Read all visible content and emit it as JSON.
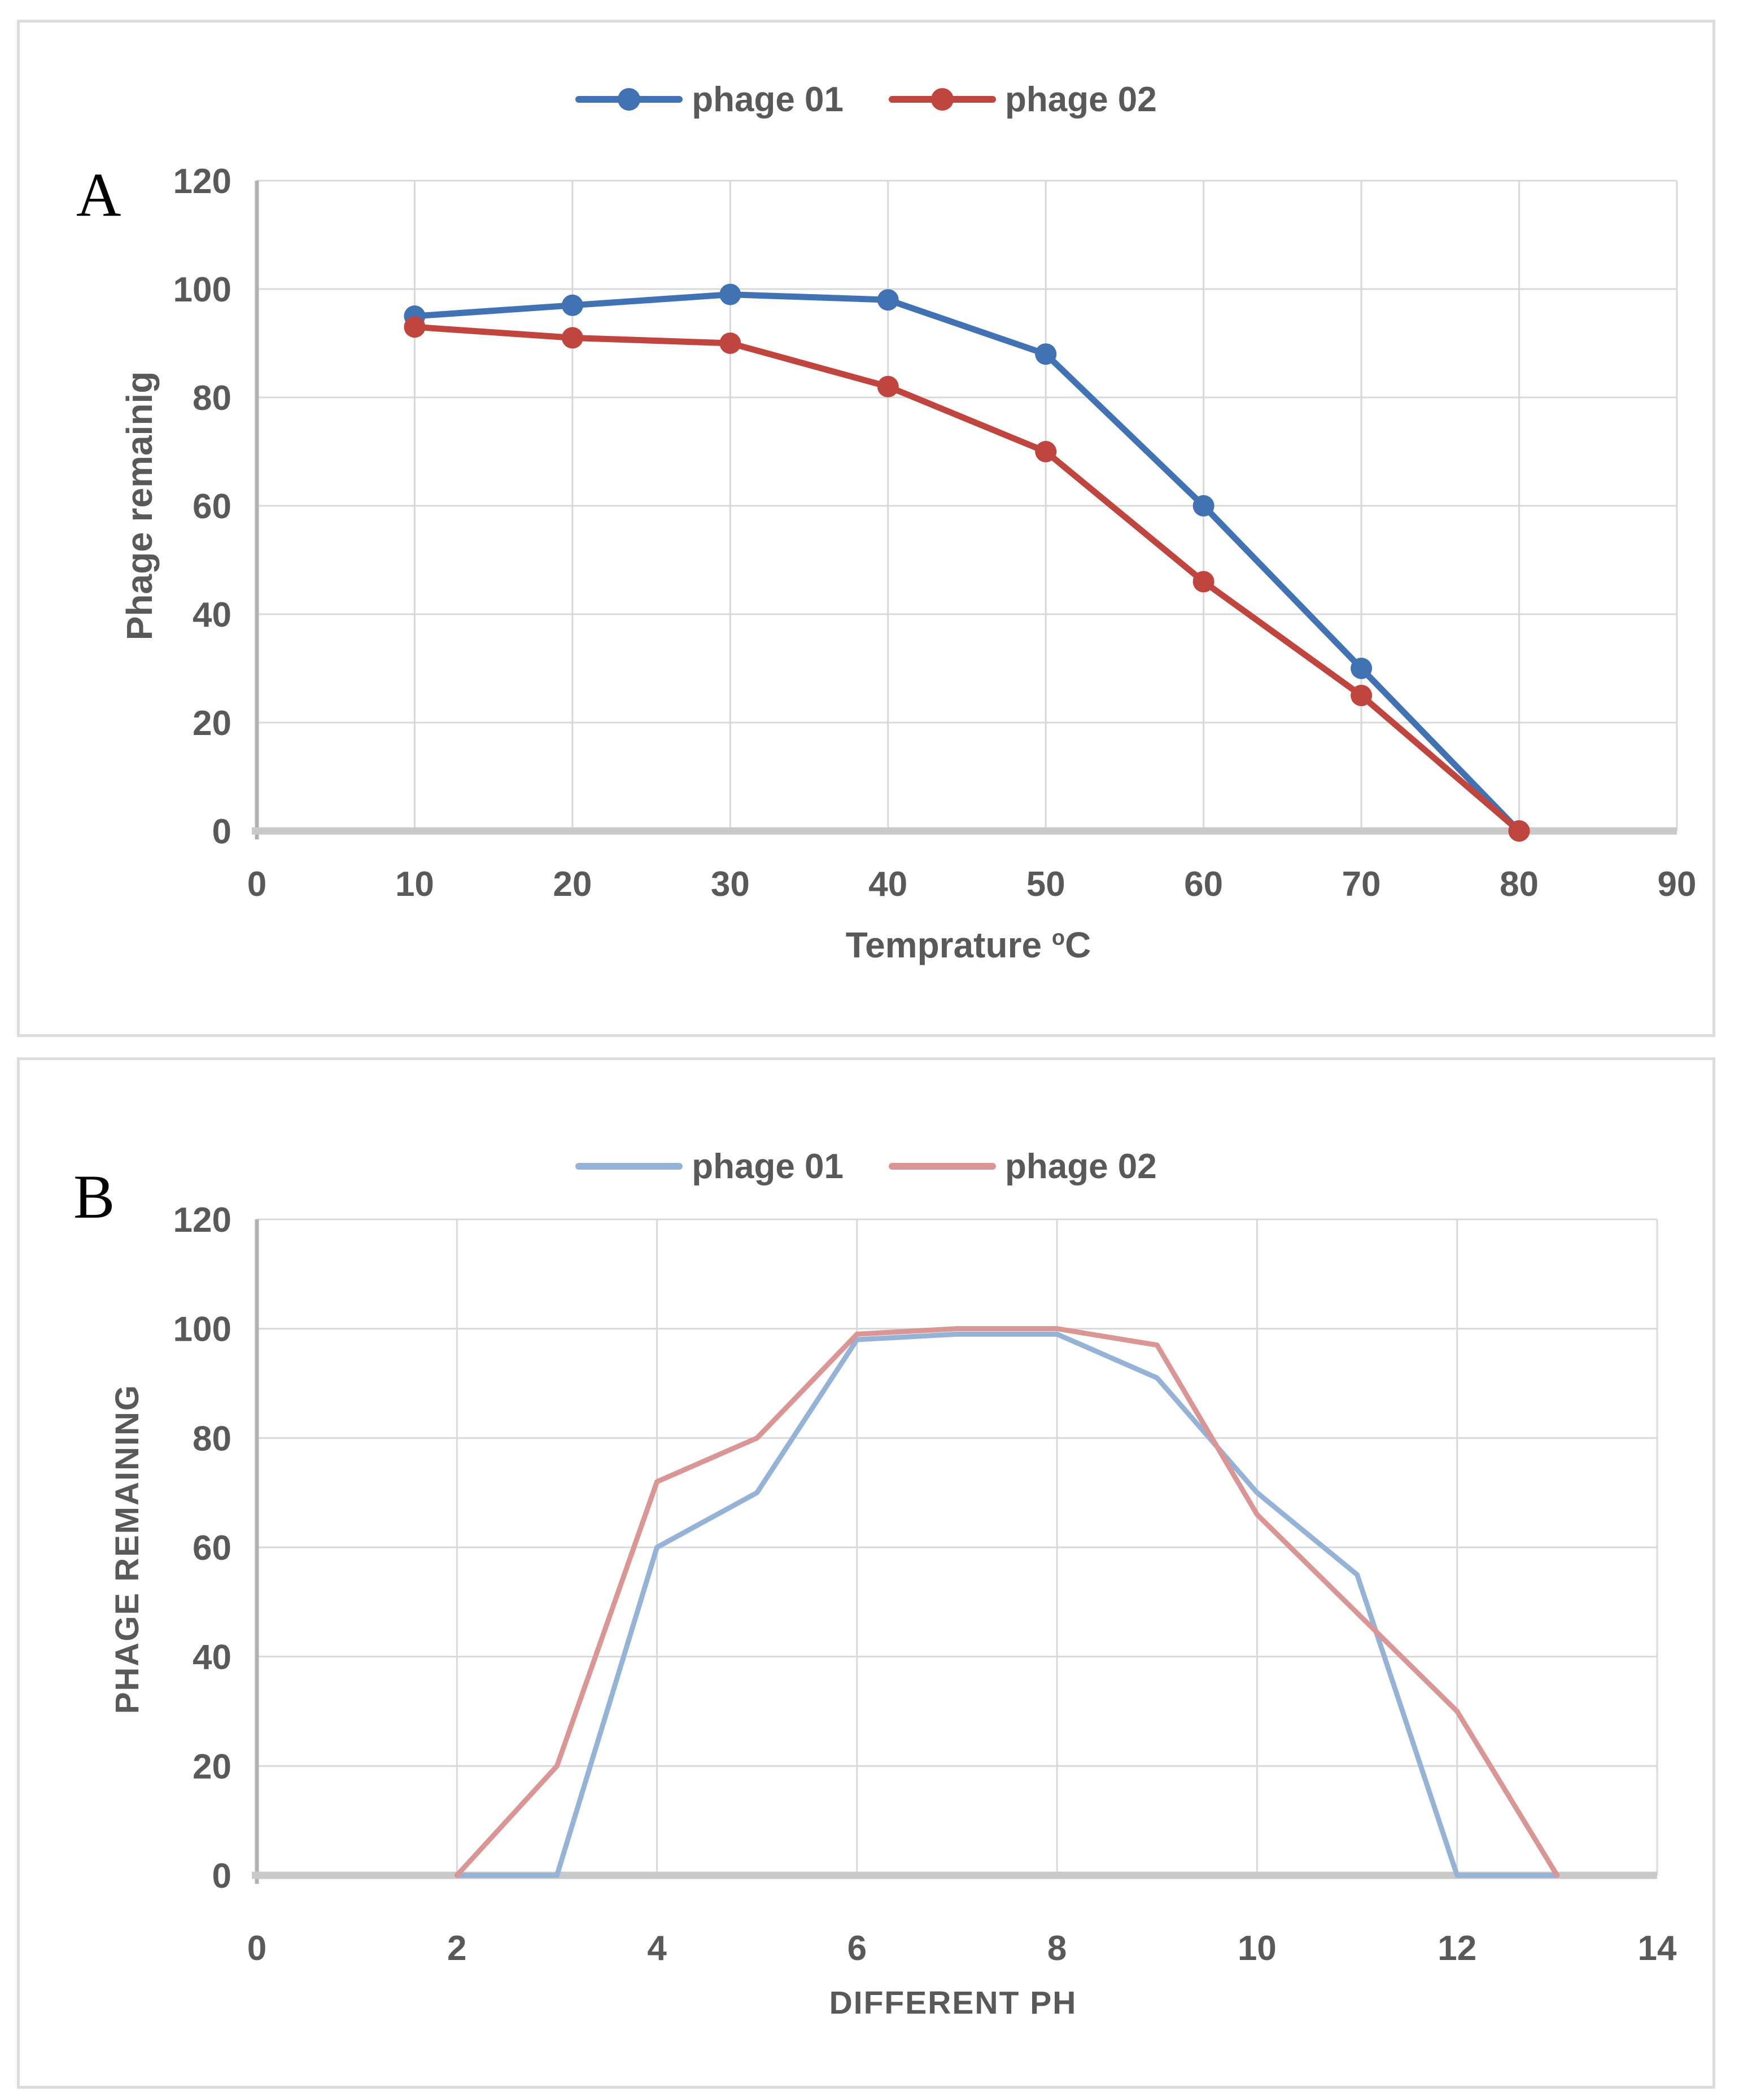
{
  "figure": {
    "panel_a_label": "A",
    "panel_b_label": "B"
  },
  "colors": {
    "background": "#ffffff",
    "panel_border": "#dcdcdc",
    "grid": "#d9d9d9",
    "axis_left": "#b2b2b2",
    "axis_bottom": "#c9c9c9",
    "tick_text": "#595959",
    "phage01_a": "#4173B4",
    "phage02_a": "#C0453E",
    "phage01_b": "#95B3D7",
    "phage02_b": "#D99694"
  },
  "chart_data": [
    {
      "type": "line",
      "panel": "A",
      "title": "",
      "xlabel": "Temprature °C",
      "xlabel_base": "Temprature ",
      "xlabel_sup": "o",
      "xlabel_suffix": "C",
      "ylabel": "Phage remainig",
      "xlim": [
        0,
        90
      ],
      "ylim": [
        0,
        120
      ],
      "xticks": [
        0,
        10,
        20,
        30,
        40,
        50,
        60,
        70,
        80,
        90
      ],
      "yticks": [
        0,
        20,
        40,
        60,
        80,
        100,
        120
      ],
      "grid": true,
      "legend_position": "top-center",
      "series": [
        {
          "name": "phage 01",
          "color": "#4173B4",
          "marker": "circle",
          "x": [
            10,
            20,
            30,
            40,
            50,
            60,
            70,
            80
          ],
          "values": [
            95,
            97,
            99,
            98,
            88,
            60,
            30,
            0
          ]
        },
        {
          "name": "phage 02",
          "color": "#C0453E",
          "marker": "circle",
          "x": [
            10,
            20,
            30,
            40,
            50,
            60,
            70,
            80
          ],
          "values": [
            93,
            91,
            90,
            82,
            70,
            46,
            25,
            0
          ]
        }
      ]
    },
    {
      "type": "line",
      "panel": "B",
      "title": "",
      "xlabel": "DIFFERENT PH",
      "ylabel": "PHAGE REMAINING",
      "xlim": [
        0,
        14
      ],
      "ylim": [
        0,
        120
      ],
      "xticks": [
        0,
        2,
        4,
        6,
        8,
        10,
        12,
        14
      ],
      "yticks": [
        0,
        20,
        40,
        60,
        80,
        100,
        120
      ],
      "grid": true,
      "legend_position": "top-center",
      "series": [
        {
          "name": "phage 01",
          "color": "#95B3D7",
          "marker": "none",
          "x": [
            2,
            3,
            4,
            5,
            6,
            7,
            8,
            9,
            10,
            11,
            12,
            13
          ],
          "values": [
            0,
            0,
            60,
            70,
            98,
            99,
            99,
            91,
            70,
            55,
            0,
            0
          ]
        },
        {
          "name": "phage 02",
          "color": "#D99694",
          "marker": "none",
          "x": [
            2,
            3,
            4,
            5,
            6,
            7,
            8,
            9,
            10,
            11,
            12,
            13
          ],
          "values": [
            0,
            20,
            72,
            80,
            99,
            100,
            100,
            97,
            66,
            48,
            30,
            0
          ]
        }
      ]
    }
  ]
}
